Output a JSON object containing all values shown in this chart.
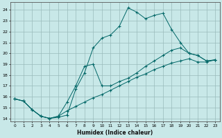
{
  "xlabel": "Humidex (Indice chaleur)",
  "bg_color": "#c8e8e8",
  "grid_color": "#99bbbb",
  "line_color": "#006666",
  "xlim": [
    -0.5,
    23.5
  ],
  "ylim": [
    13.7,
    24.7
  ],
  "yticks": [
    14,
    15,
    16,
    17,
    18,
    19,
    20,
    21,
    22,
    23,
    24
  ],
  "xticks": [
    0,
    1,
    2,
    3,
    4,
    5,
    6,
    7,
    8,
    9,
    10,
    11,
    12,
    13,
    14,
    15,
    16,
    17,
    18,
    19,
    20,
    21,
    22,
    23
  ],
  "series1_x": [
    0,
    1,
    2,
    3,
    4,
    5,
    6,
    7,
    8,
    9,
    10,
    11,
    12,
    13,
    14,
    15,
    16,
    17,
    18,
    19,
    20,
    21,
    22,
    23
  ],
  "series1_y": [
    15.8,
    15.6,
    14.8,
    14.2,
    14.0,
    14.1,
    14.3,
    16.7,
    18.2,
    20.5,
    21.4,
    21.7,
    22.5,
    24.2,
    23.8,
    23.2,
    23.5,
    23.7,
    22.2,
    21.0,
    20.0,
    19.8,
    19.3,
    19.4
  ],
  "series2_x": [
    0,
    1,
    2,
    3,
    4,
    5,
    6,
    7,
    8,
    9,
    10,
    11,
    12,
    13,
    14,
    15,
    16,
    17,
    18,
    19,
    20,
    21,
    22,
    23
  ],
  "series2_y": [
    15.8,
    15.6,
    14.8,
    14.2,
    14.0,
    14.2,
    15.5,
    17.0,
    18.8,
    19.0,
    17.0,
    17.0,
    17.4,
    17.7,
    18.2,
    18.8,
    19.3,
    19.8,
    20.3,
    20.5,
    20.0,
    19.8,
    19.3,
    19.4
  ],
  "series3_x": [
    0,
    1,
    2,
    3,
    4,
    5,
    6,
    7,
    8,
    9,
    10,
    11,
    12,
    13,
    14,
    15,
    16,
    17,
    18,
    19,
    20,
    21,
    22,
    23
  ],
  "series3_y": [
    15.8,
    15.6,
    14.8,
    14.2,
    14.0,
    14.2,
    14.7,
    15.1,
    15.5,
    15.9,
    16.2,
    16.6,
    17.0,
    17.4,
    17.8,
    18.1,
    18.5,
    18.8,
    19.1,
    19.3,
    19.5,
    19.2,
    19.2,
    19.4
  ]
}
